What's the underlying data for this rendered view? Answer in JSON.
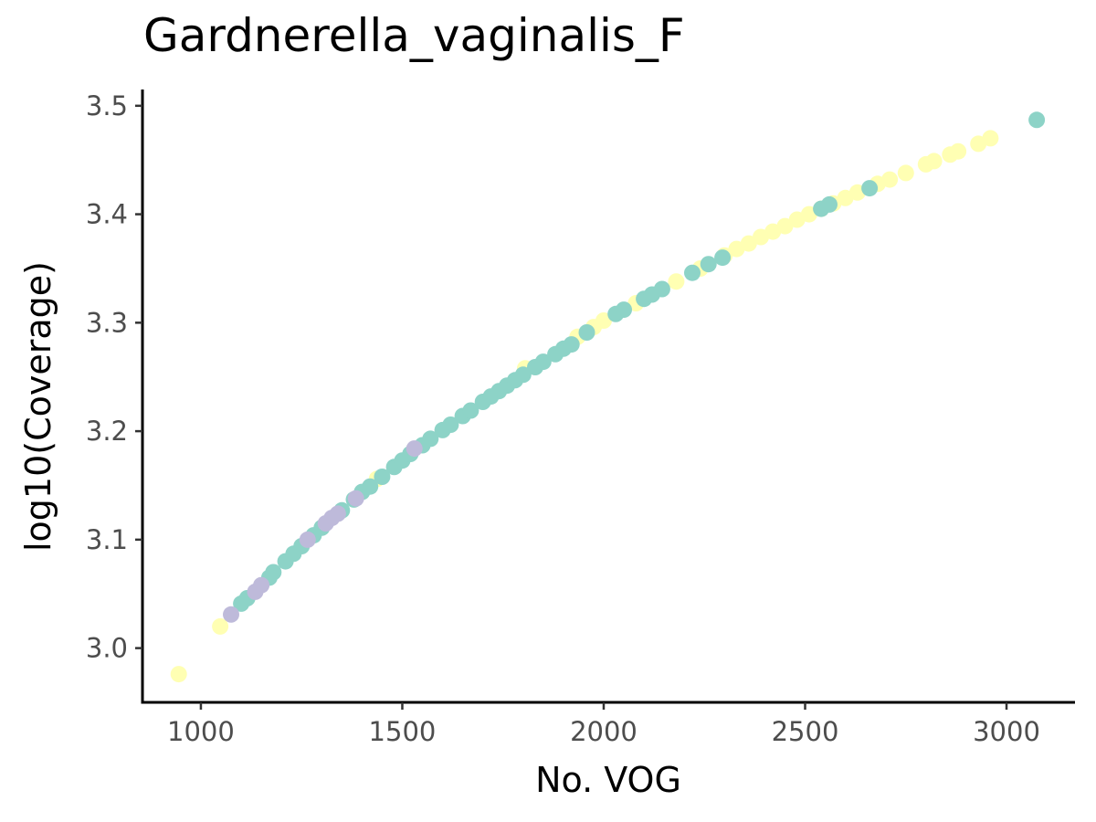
{
  "chart_data": {
    "type": "scatter",
    "title": "Gardnerella_vaginalis_F",
    "xlabel": "No. VOG",
    "ylabel": "log10(Coverage)",
    "xlim": [
      855,
      3170
    ],
    "ylim": [
      2.95,
      3.515
    ],
    "x_ticks": [
      1000,
      1500,
      2000,
      2500,
      3000
    ],
    "x_tick_labels": [
      "1000",
      "1500",
      "2000",
      "2500",
      "3000"
    ],
    "y_ticks": [
      3.0,
      3.1,
      3.2,
      3.3,
      3.4,
      3.5
    ],
    "y_tick_labels": [
      "3.0",
      "3.1",
      "3.2",
      "3.3",
      "3.4",
      "3.5"
    ],
    "grid": false,
    "legend": "none",
    "colors": {
      "teal": "#8dd3c7",
      "yellow": "#ffffb3",
      "lavender": "#bebada"
    },
    "series": [
      {
        "color": "#ffffb3",
        "points": [
          [
            945,
            2.976
          ],
          [
            1048,
            3.02
          ],
          [
            1437,
            3.156
          ],
          [
            1805,
            3.258
          ],
          [
            1935,
            3.287
          ],
          [
            1975,
            3.296
          ],
          [
            2000,
            3.302
          ],
          [
            2080,
            3.318
          ],
          [
            2180,
            3.338
          ],
          [
            2240,
            3.35
          ],
          [
            2300,
            3.362
          ],
          [
            2330,
            3.368
          ],
          [
            2360,
            3.373
          ],
          [
            2390,
            3.379
          ],
          [
            2420,
            3.384
          ],
          [
            2450,
            3.389
          ],
          [
            2480,
            3.395
          ],
          [
            2510,
            3.4
          ],
          [
            2540,
            3.405
          ],
          [
            2570,
            3.41
          ],
          [
            2600,
            3.415
          ],
          [
            2630,
            3.42
          ],
          [
            2680,
            3.428
          ],
          [
            2710,
            3.432
          ],
          [
            2750,
            3.438
          ],
          [
            2800,
            3.446
          ],
          [
            2820,
            3.449
          ],
          [
            2860,
            3.455
          ],
          [
            2880,
            3.458
          ],
          [
            2930,
            3.465
          ],
          [
            2960,
            3.47
          ]
        ]
      },
      {
        "color": "#8dd3c7",
        "points": [
          [
            1100,
            3.041
          ],
          [
            1115,
            3.046
          ],
          [
            1170,
            3.065
          ],
          [
            1180,
            3.07
          ],
          [
            1210,
            3.08
          ],
          [
            1230,
            3.087
          ],
          [
            1250,
            3.094
          ],
          [
            1280,
            3.104
          ],
          [
            1300,
            3.111
          ],
          [
            1350,
            3.127
          ],
          [
            1380,
            3.137
          ],
          [
            1400,
            3.144
          ],
          [
            1420,
            3.149
          ],
          [
            1450,
            3.158
          ],
          [
            1480,
            3.167
          ],
          [
            1500,
            3.173
          ],
          [
            1520,
            3.179
          ],
          [
            1550,
            3.187
          ],
          [
            1570,
            3.193
          ],
          [
            1600,
            3.201
          ],
          [
            1620,
            3.206
          ],
          [
            1650,
            3.214
          ],
          [
            1670,
            3.219
          ],
          [
            1700,
            3.227
          ],
          [
            1720,
            3.232
          ],
          [
            1740,
            3.237
          ],
          [
            1760,
            3.242
          ],
          [
            1780,
            3.247
          ],
          [
            1800,
            3.252
          ],
          [
            1830,
            3.259
          ],
          [
            1850,
            3.264
          ],
          [
            1880,
            3.271
          ],
          [
            1900,
            3.276
          ],
          [
            1920,
            3.28
          ],
          [
            1958,
            3.291
          ],
          [
            2030,
            3.308
          ],
          [
            2050,
            3.312
          ],
          [
            2100,
            3.322
          ],
          [
            2120,
            3.326
          ],
          [
            2145,
            3.331
          ],
          [
            2220,
            3.346
          ],
          [
            2260,
            3.354
          ],
          [
            2295,
            3.36
          ],
          [
            2540,
            3.405
          ],
          [
            2560,
            3.409
          ],
          [
            2660,
            3.424
          ],
          [
            3075,
            3.487
          ]
        ]
      },
      {
        "color": "#bebada",
        "points": [
          [
            1075,
            3.031
          ],
          [
            1135,
            3.052
          ],
          [
            1150,
            3.058
          ],
          [
            1265,
            3.1
          ],
          [
            1310,
            3.115
          ],
          [
            1325,
            3.12
          ],
          [
            1340,
            3.124
          ],
          [
            1385,
            3.138
          ],
          [
            1530,
            3.184
          ]
        ]
      }
    ]
  }
}
